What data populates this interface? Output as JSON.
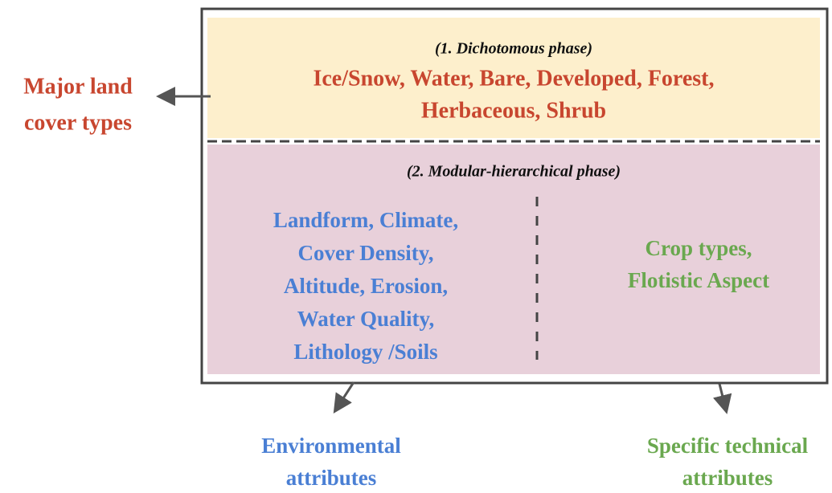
{
  "left_label": {
    "lines": [
      "Major land",
      "cover types"
    ]
  },
  "phase1": {
    "title": "(1. Dichotomous phase)",
    "lines": [
      "Ice/Snow, Water, Bare, Developed, Forest,",
      "Herbaceous, Shrub"
    ]
  },
  "phase2": {
    "title": "(2. Modular-hierarchical phase)",
    "environmental": [
      "Landform, Climate,",
      "Cover Density,",
      "Altitude, Erosion,",
      "Water Quality,",
      "Lithology /Soils"
    ],
    "technical": [
      "Crop types,",
      "Flotistic Aspect"
    ]
  },
  "bottom_left": {
    "lines": [
      "Environmental",
      "attributes"
    ]
  },
  "bottom_right": {
    "lines": [
      "Specific technical",
      "attributes"
    ]
  }
}
